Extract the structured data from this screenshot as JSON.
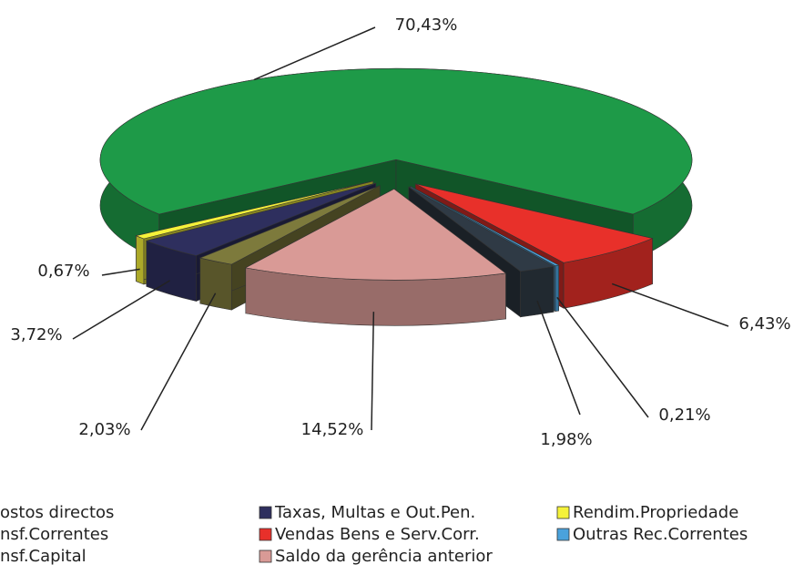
{
  "chart_data": {
    "type": "pie",
    "categories": [
      "ostos directos",
      "nsf.Correntes",
      "nsf.Capital",
      "Taxas, Multas e Out.Pen.",
      "Vendas Bens e Serv.Corr.",
      "Saldo da gerência anterior",
      "Rendim.Propriedade",
      "Outras Rec.Correntes"
    ],
    "values": [
      1.98,
      70.43,
      2.03,
      3.72,
      6.43,
      14.52,
      0.67,
      0.21
    ],
    "value_labels": [
      "1,98%",
      "70,43%",
      "2,03%",
      "3,72%",
      "6,43%",
      "14,52%",
      "0,67%",
      "0,21%"
    ],
    "colors": [
      "#2f3a45",
      "#1e9a48",
      "#7d7a3c",
      "#2e2f5e",
      "#e8302a",
      "#d99a96",
      "#f5f23a",
      "#4aa2dc"
    ],
    "legend": "bottom"
  }
}
